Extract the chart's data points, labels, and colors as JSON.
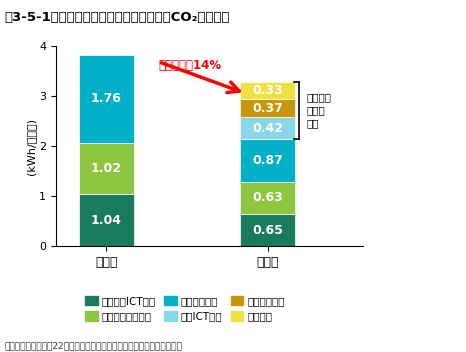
{
  "title": "図3-5-1　テレワークによるオフィスでのCO₂削減効果",
  "ylabel": "(kWh/人・日)",
  "ylim": [
    0,
    4
  ],
  "yticks": [
    0,
    1,
    2,
    3,
    4
  ],
  "categories": [
    "導入前",
    "導入後"
  ],
  "before_values": [
    1.04,
    1.02,
    1.76
  ],
  "after_values": [
    0.65,
    0.63,
    0.87,
    0.42,
    0.37,
    0.33
  ],
  "before_colors": [
    "#1a7a5e",
    "#8dc63f",
    "#00b0c8"
  ],
  "after_colors": [
    "#1a7a5e",
    "#8dc63f",
    "#00b0c8",
    "#87d7e8",
    "#c8960a",
    "#f0e040"
  ],
  "before_labels": [
    "1.04",
    "1.02",
    "1.76"
  ],
  "after_labels": [
    "0.65",
    "0.63",
    "0.87",
    "0.42",
    "0.37",
    "0.33"
  ],
  "legend_labels": [
    "オフィスICT機器",
    "オフィス空調設備",
    "オフィス照明",
    "家庭ICT機器",
    "家庭空調設備",
    "家庭照明"
  ],
  "legend_colors": [
    "#1a7a5e",
    "#8dc63f",
    "#00b0c8",
    "#87d7e8",
    "#c8960a",
    "#f0e040"
  ],
  "arrow_text": "電力削減率14%",
  "bracket_text": "在宅勤務\nによる\n電力",
  "source_text": "資料：総務省「平成22年度次世代のテレワーク環境に関する調査研究」",
  "bar_width": 0.55,
  "x_positions": [
    0,
    1.6
  ]
}
